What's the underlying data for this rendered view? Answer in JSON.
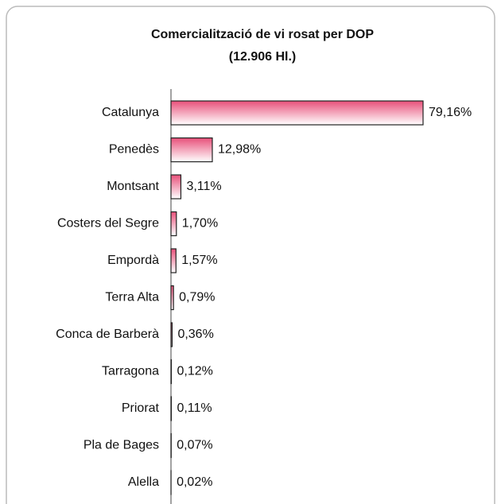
{
  "chart_data": {
    "type": "barh",
    "title": "Comercialització de vi rosat per DOP",
    "subtitle": "(12.906 Hl.)",
    "categories": [
      "Catalunya",
      "Penedès",
      "Montsant",
      "Costers del Segre",
      "Empordà",
      "Terra Alta",
      "Conca de Barberà",
      "Tarragona",
      "Priorat",
      "Pla de Bages",
      "Alella"
    ],
    "values": [
      79.16,
      12.98,
      3.11,
      1.7,
      1.57,
      0.79,
      0.36,
      0.12,
      0.11,
      0.07,
      0.02
    ],
    "value_labels": [
      "79,16%",
      "12,98%",
      "3,11%",
      "1,70%",
      "1,57%",
      "0,79%",
      "0,36%",
      "0,12%",
      "0,11%",
      "0,07%",
      "0,02%"
    ],
    "color": "#e8507a"
  }
}
